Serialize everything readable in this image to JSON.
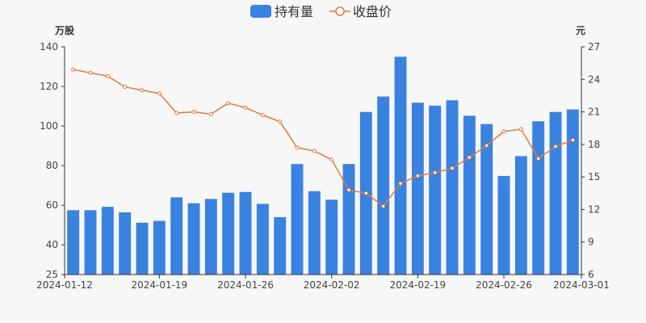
{
  "chart_data": {
    "type": "bar+line",
    "legend": {
      "position": "top-center",
      "items": [
        {
          "label": "持有量",
          "kind": "bar",
          "color": "#3a82e0"
        },
        {
          "label": "收盘价",
          "kind": "line",
          "color": "#e07a3a"
        }
      ]
    },
    "left_axis": {
      "unit": "万股",
      "min": 25,
      "max": 140,
      "ticks": [
        25,
        40,
        60,
        80,
        100,
        120,
        140
      ]
    },
    "right_axis": {
      "unit": "元",
      "min": 6,
      "max": 27,
      "ticks": [
        6,
        9,
        12,
        15,
        18,
        21,
        24,
        27
      ]
    },
    "x_tick_labels": [
      "2024-01-12",
      "2024-01-19",
      "2024-01-26",
      "2024-02-02",
      "2024-02-19",
      "2024-02-26",
      "2024-03-01"
    ],
    "x": [
      "2024-01-12",
      "2024-01-15",
      "2024-01-16",
      "2024-01-17",
      "2024-01-18",
      "2024-01-19",
      "2024-01-22",
      "2024-01-23",
      "2024-01-24",
      "2024-01-25",
      "2024-01-26",
      "2024-01-29",
      "2024-01-30",
      "2024-01-31",
      "2024-02-01",
      "2024-02-02",
      "2024-02-05",
      "2024-02-06",
      "2024-02-07",
      "2024-02-08",
      "2024-02-19",
      "2024-02-20",
      "2024-02-21",
      "2024-02-22",
      "2024-02-23",
      "2024-02-26",
      "2024-02-27",
      "2024-02-28",
      "2024-02-29",
      "2024-03-01"
    ],
    "series": [
      {
        "name": "持有量",
        "type": "bar",
        "axis": "left",
        "color": "#3a82e0",
        "values": [
          57.5,
          57.5,
          59.2,
          56.4,
          51.2,
          52.1,
          64.0,
          61.0,
          63.2,
          66.3,
          66.7,
          60.7,
          54.0,
          80.8,
          67.1,
          62.8,
          80.8,
          107.1,
          114.9,
          135.0,
          111.8,
          110.3,
          113.0,
          105.2,
          101.0,
          74.8,
          84.8,
          102.4,
          107.1,
          108.4
        ]
      },
      {
        "name": "收盘价",
        "type": "line",
        "axis": "right",
        "color": "#e07a3a",
        "values": [
          24.9,
          24.6,
          24.3,
          23.3,
          23.0,
          22.7,
          20.9,
          21.0,
          20.8,
          21.8,
          21.4,
          20.7,
          20.1,
          17.7,
          17.4,
          16.6,
          13.8,
          13.5,
          12.3,
          14.4,
          15.1,
          15.4,
          15.8,
          16.8,
          17.9,
          19.2,
          19.4,
          16.7,
          17.8,
          18.4
        ]
      }
    ]
  }
}
